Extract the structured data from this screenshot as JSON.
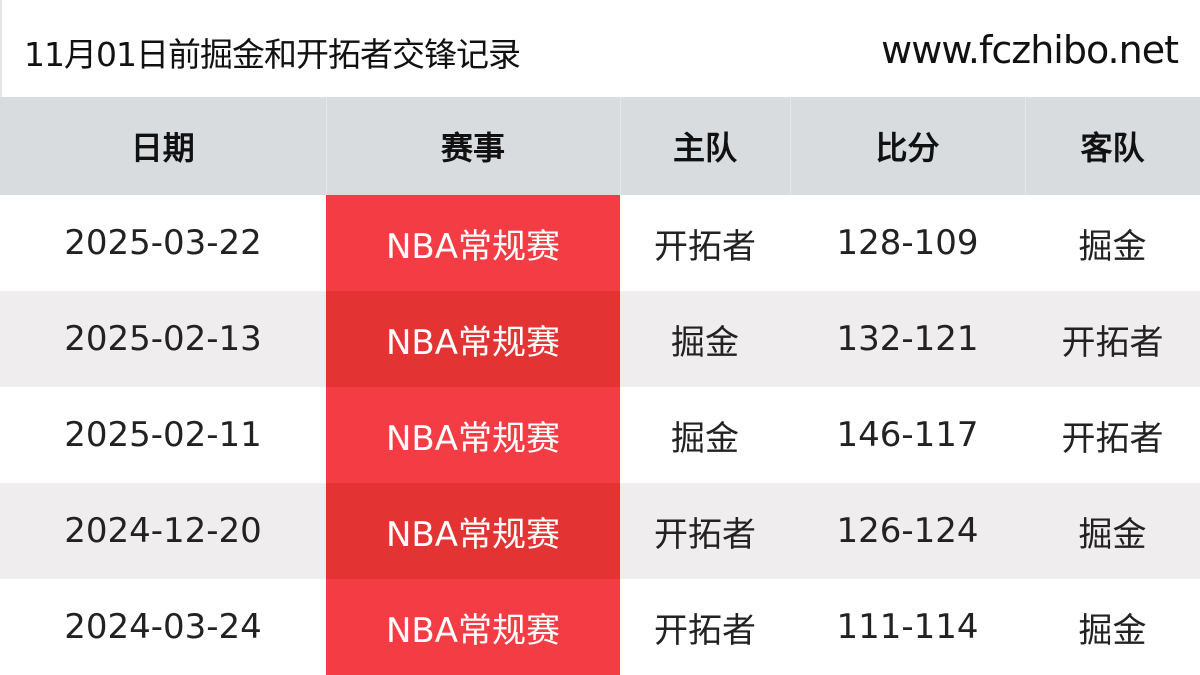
{
  "header": {
    "title": "11月01日前掘金和开拓者交锋记录",
    "site": "www.fczhibo.net"
  },
  "table": {
    "columns": [
      "日期",
      "赛事",
      "主队",
      "比分",
      "客队"
    ],
    "rows": [
      {
        "date": "2025-03-22",
        "competition": "NBA常规赛",
        "home": "开拓者",
        "score": "128-109",
        "away": "掘金"
      },
      {
        "date": "2025-02-13",
        "competition": "NBA常规赛",
        "home": "掘金",
        "score": "132-121",
        "away": "开拓者"
      },
      {
        "date": "2025-02-11",
        "competition": "NBA常规赛",
        "home": "掘金",
        "score": "146-117",
        "away": "开拓者"
      },
      {
        "date": "2024-12-20",
        "competition": "NBA常规赛",
        "home": "开拓者",
        "score": "126-124",
        "away": "掘金"
      },
      {
        "date": "2024-03-24",
        "competition": "NBA常规赛",
        "home": "开拓者",
        "score": "111-114",
        "away": "掘金"
      }
    ]
  },
  "colors": {
    "competition_red": "#f43c45",
    "competition_red_alt": "#e33333",
    "header_bg": "#d9dcdf",
    "alt_row_bg": "#efeded"
  }
}
